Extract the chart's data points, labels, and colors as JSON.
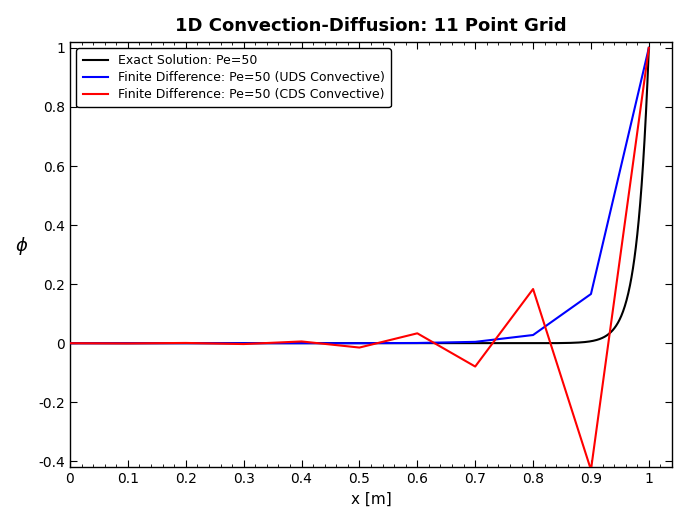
{
  "title": "1D Convection-Diffusion: 11 Point Grid",
  "xlabel": "x [m]",
  "ylabel": "ϕ",
  "xlim": [
    0,
    1.04
  ],
  "ylim": [
    -0.42,
    1.02
  ],
  "Pe": 50,
  "n_points": 11,
  "legend": [
    "Exact Solution: Pe=50",
    "Finite Difference: Pe=50 (UDS Convective)",
    "Finite Difference: Pe=50 (CDS Convective)"
  ],
  "colors": [
    "#000000",
    "#0000ff",
    "#ff0000"
  ],
  "linewidth": 1.5,
  "background_color": "#ffffff",
  "title_fontsize": 13,
  "label_fontsize": 11,
  "tick_fontsize": 10,
  "legend_fontsize": 9,
  "x_ticks": [
    0,
    0.1,
    0.2,
    0.3,
    0.4,
    0.5,
    0.6,
    0.7,
    0.8,
    0.9,
    1.0
  ],
  "y_ticks": [
    -0.4,
    -0.2,
    0,
    0.2,
    0.4,
    0.6,
    0.8,
    1.0
  ]
}
